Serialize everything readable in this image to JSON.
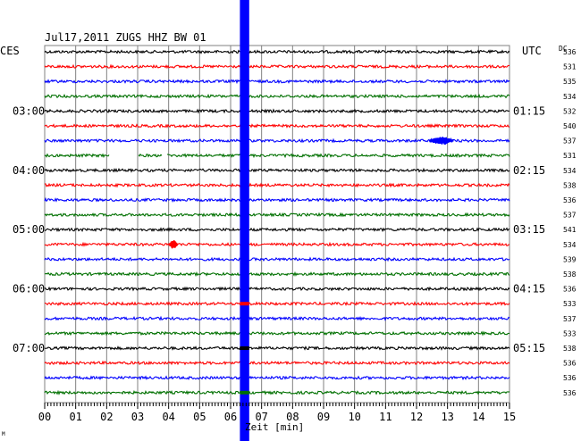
{
  "header": {
    "title": "Jul17,2011  ZUGS HHZ BW 01",
    "left_tz": "CES",
    "right_tz": "UTC",
    "dc_label": "DC"
  },
  "left_times": [
    "03:00",
    "04:00",
    "05:00",
    "06:00",
    "07:00"
  ],
  "right_times": [
    "01:15",
    "02:15",
    "03:15",
    "04:15",
    "05:15"
  ],
  "dc_values": [
    "536",
    "531",
    "535",
    "534",
    "532",
    "540",
    "537",
    "531",
    "534",
    "538",
    "536",
    "537",
    "541",
    "534",
    "539",
    "538",
    "536",
    "533",
    "537",
    "533",
    "538",
    "536",
    "536",
    "536"
  ],
  "x_ticks": [
    "00",
    "01",
    "02",
    "03",
    "04",
    "05",
    "06",
    "07",
    "08",
    "09",
    "10",
    "11",
    "12",
    "13",
    "14",
    "15"
  ],
  "x_axis_label": "Zeit [min]",
  "footnote": "M",
  "trace_colors": [
    "#000000",
    "#ff0000",
    "#0000ff",
    "#007000"
  ],
  "chart_data": {
    "type": "line",
    "title": "Jul17,2011  ZUGS HHZ BW 01",
    "xlabel": "Zeit [min]",
    "xlim": [
      0,
      15
    ],
    "trace_count": 24,
    "trace_minutes": 15,
    "dc_offsets": [
      536,
      531,
      535,
      534,
      532,
      540,
      537,
      531,
      534,
      538,
      536,
      537,
      541,
      534,
      539,
      538,
      536,
      533,
      537,
      533,
      538,
      536,
      536,
      536
    ],
    "events": [
      {
        "trace": 6,
        "start_min": 12.4,
        "end_min": 13.2,
        "amplitude": "moderate"
      },
      {
        "trace": 13,
        "start_min": 4.0,
        "end_min": 4.3,
        "amplitude": "moderate"
      },
      {
        "trace": "all",
        "start_min": 6.3,
        "end_min": 6.6,
        "amplitude": "saturated"
      }
    ],
    "gaps": [
      {
        "trace": 7,
        "start_min": 2.1,
        "end_min": 3.0
      },
      {
        "trace": 7,
        "start_min": 3.8,
        "end_min": 3.95
      }
    ],
    "grid": true
  }
}
